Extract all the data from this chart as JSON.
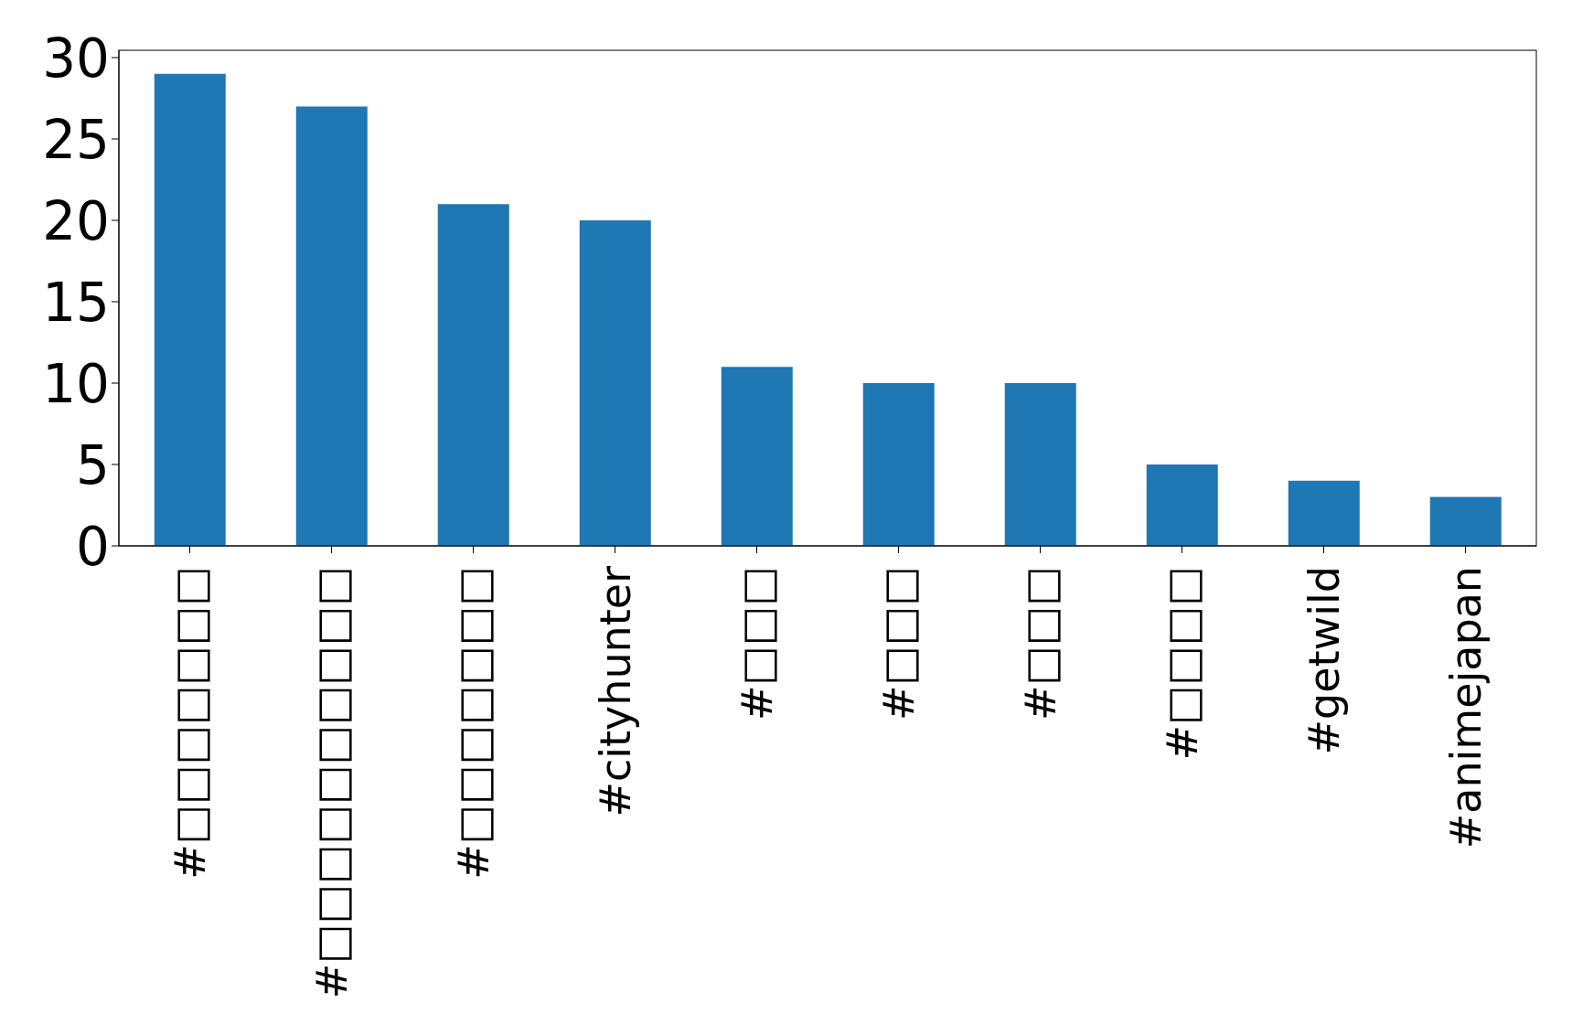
{
  "chart_data": {
    "type": "bar",
    "categories": [
      "#□□□□□□□",
      "#□□□□□□□□□□",
      "#□□□□□□□",
      "#cityhunter",
      "#□□□",
      "#□□□",
      "#□□□",
      "#□□□□",
      "#getwild",
      "#animejapan"
    ],
    "values": [
      29,
      27,
      21,
      20,
      11,
      10,
      10,
      5,
      4,
      3
    ],
    "color": "#1f77b4",
    "ylim": [
      0,
      30.45
    ],
    "yticks": [
      0,
      5,
      10,
      15,
      20,
      25,
      30
    ],
    "grid": false,
    "legend": false
  }
}
